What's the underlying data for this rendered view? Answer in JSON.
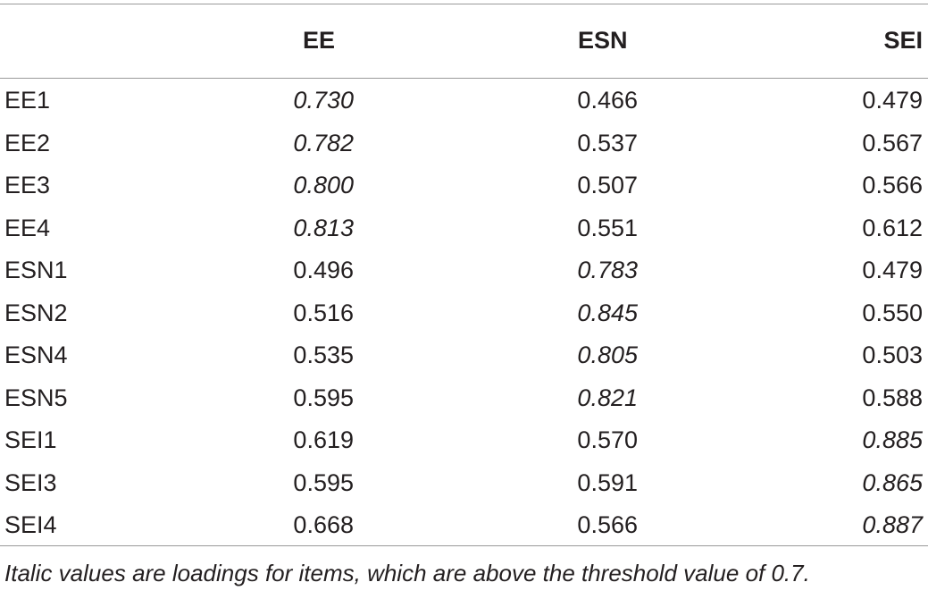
{
  "table": {
    "headers": [
      "",
      "EE",
      "ESN",
      "SEI"
    ],
    "rows": [
      {
        "item": "EE1",
        "values": [
          "0.730",
          "0.466",
          "0.479"
        ],
        "italic": [
          true,
          false,
          false
        ]
      },
      {
        "item": "EE2",
        "values": [
          "0.782",
          "0.537",
          "0.567"
        ],
        "italic": [
          true,
          false,
          false
        ]
      },
      {
        "item": "EE3",
        "values": [
          "0.800",
          "0.507",
          "0.566"
        ],
        "italic": [
          true,
          false,
          false
        ]
      },
      {
        "item": "EE4",
        "values": [
          "0.813",
          "0.551",
          "0.612"
        ],
        "italic": [
          true,
          false,
          false
        ]
      },
      {
        "item": "ESN1",
        "values": [
          "0.496",
          "0.783",
          "0.479"
        ],
        "italic": [
          false,
          true,
          false
        ]
      },
      {
        "item": "ESN2",
        "values": [
          "0.516",
          "0.845",
          "0.550"
        ],
        "italic": [
          false,
          true,
          false
        ]
      },
      {
        "item": "ESN4",
        "values": [
          "0.535",
          "0.805",
          "0.503"
        ],
        "italic": [
          false,
          true,
          false
        ]
      },
      {
        "item": "ESN5",
        "values": [
          "0.595",
          "0.821",
          "0.588"
        ],
        "italic": [
          false,
          true,
          false
        ]
      },
      {
        "item": "SEI1",
        "values": [
          "0.619",
          "0.570",
          "0.885"
        ],
        "italic": [
          false,
          false,
          true
        ]
      },
      {
        "item": "SEI3",
        "values": [
          "0.595",
          "0.591",
          "0.865"
        ],
        "italic": [
          false,
          false,
          true
        ]
      },
      {
        "item": "SEI4",
        "values": [
          "0.668",
          "0.566",
          "0.887"
        ],
        "italic": [
          false,
          false,
          true
        ]
      }
    ]
  },
  "footnote": "Italic values are loadings for items, which are above the threshold value of 0.7."
}
